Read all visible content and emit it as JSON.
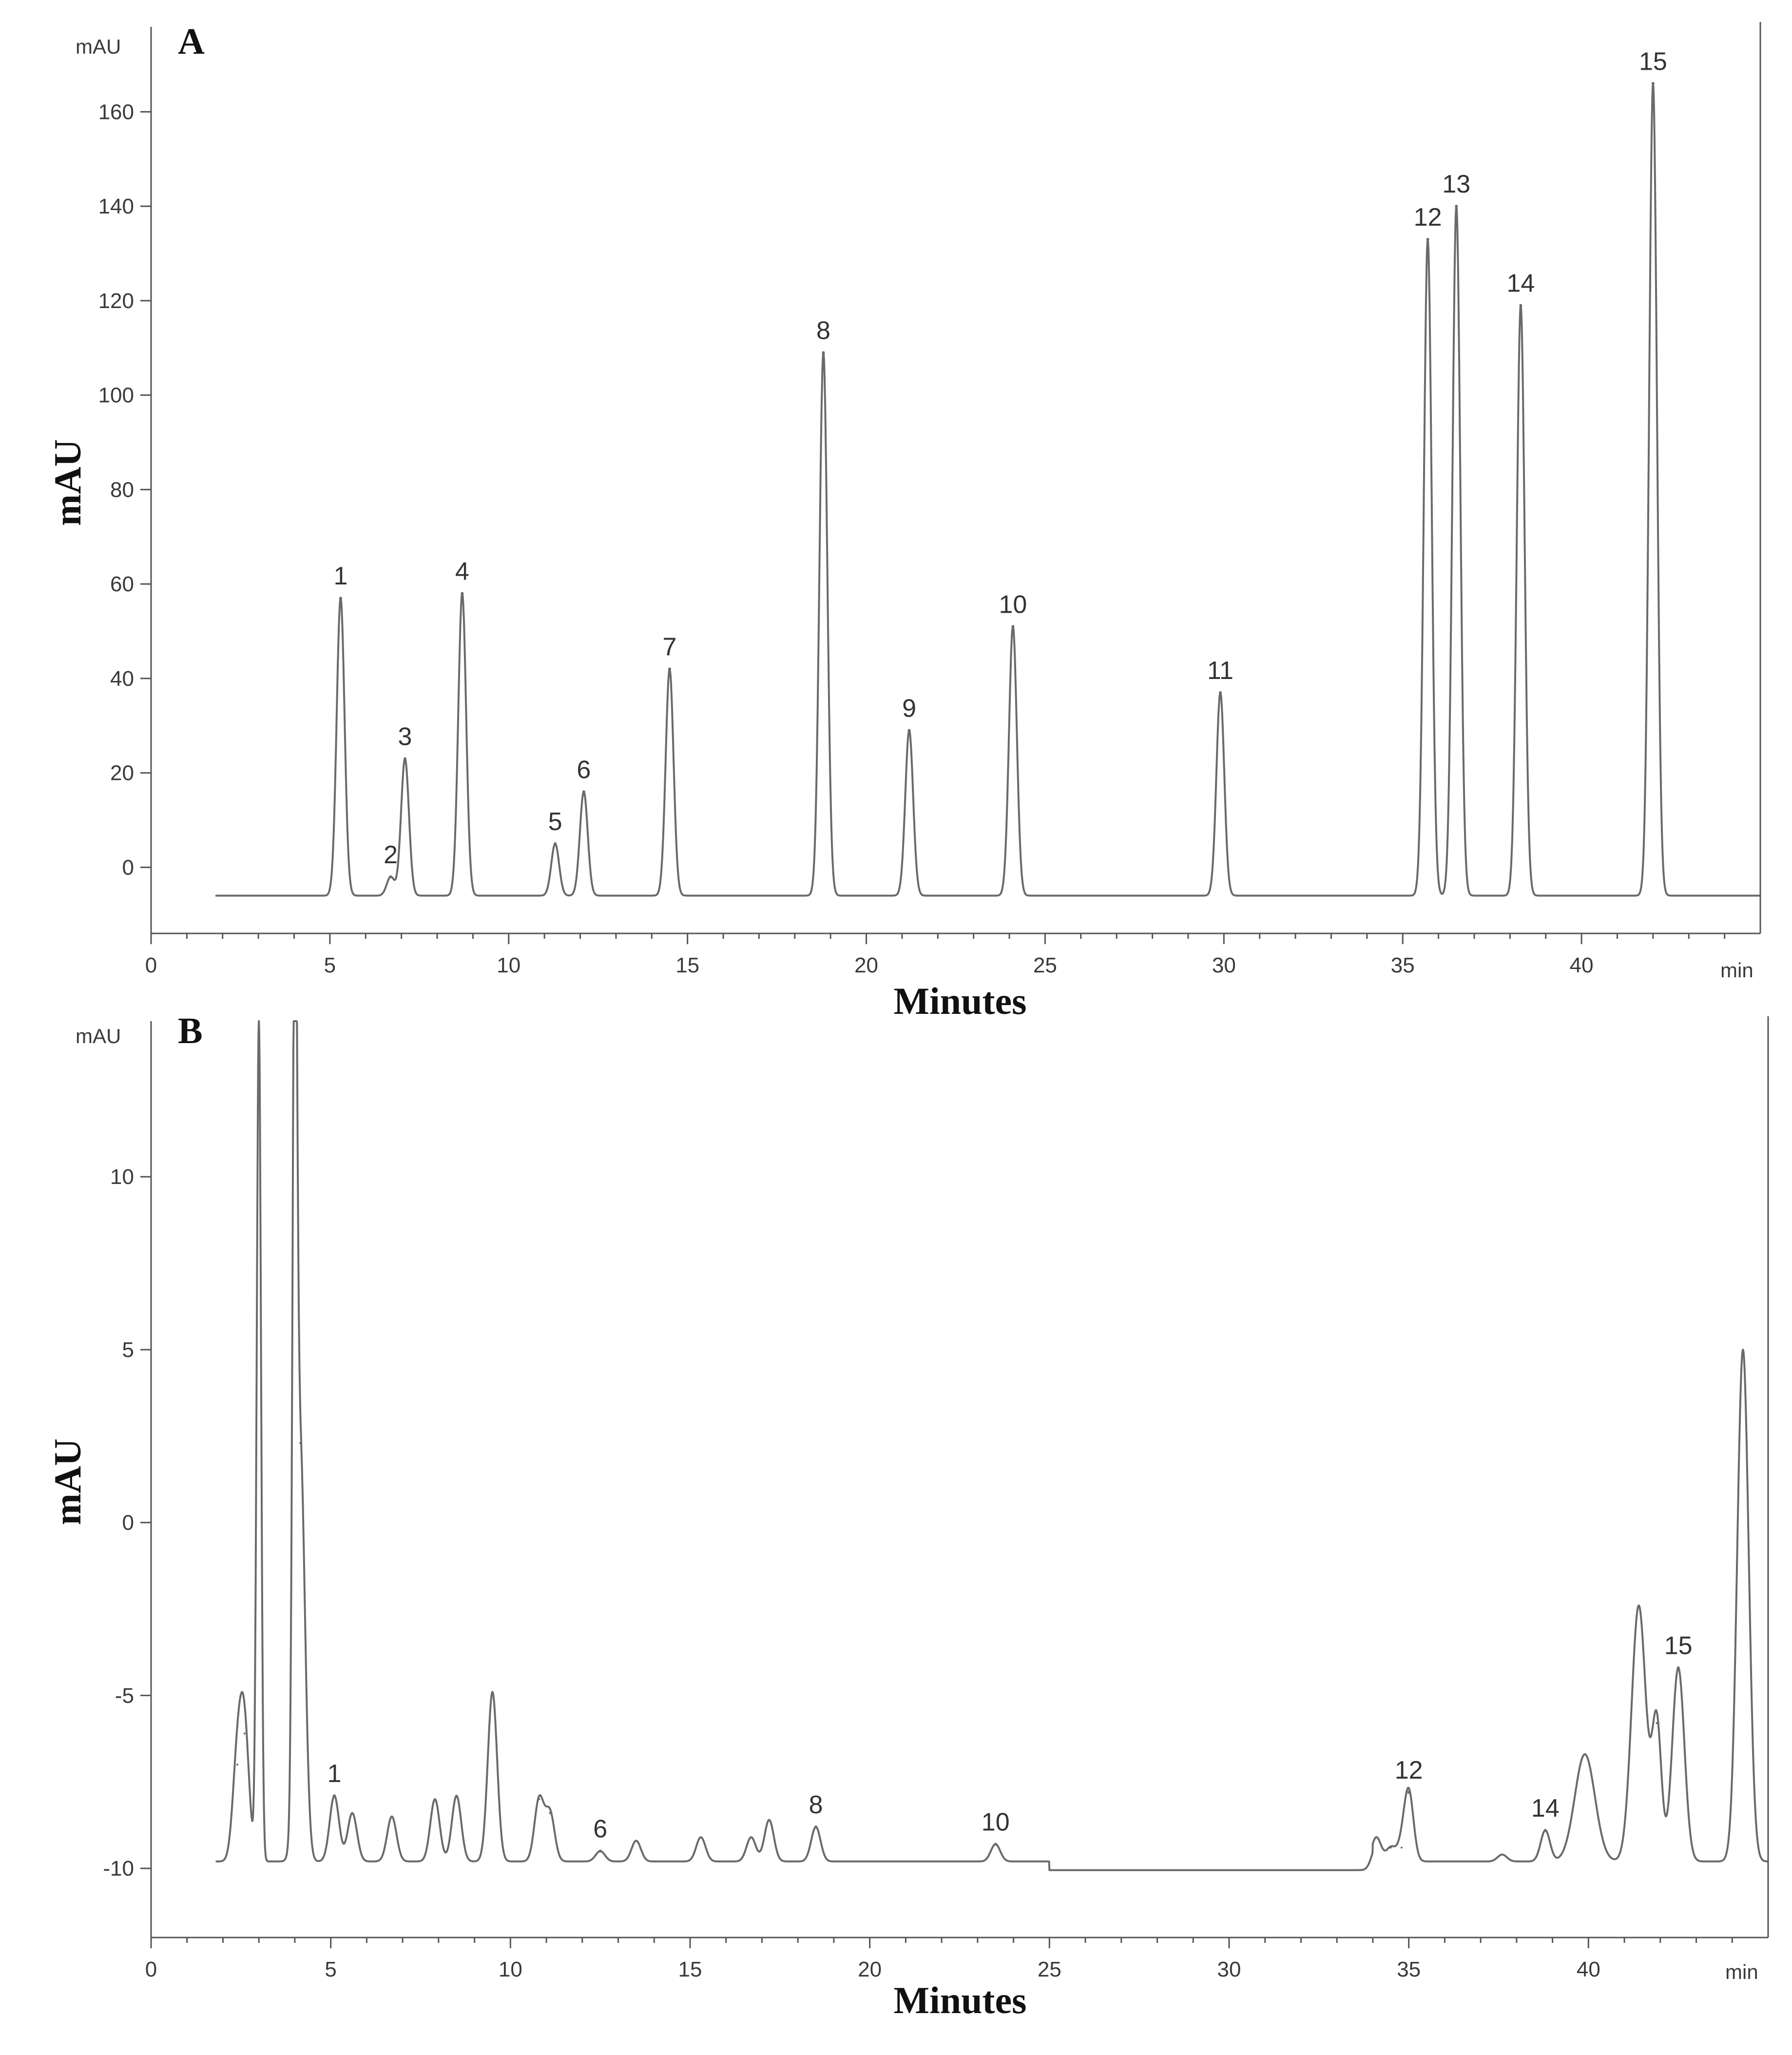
{
  "chart_data": [
    {
      "type": "line",
      "panel_label": "A",
      "unit_label": "mAU",
      "x_unit_label": "min",
      "xlabel": "Minutes",
      "ylabel": "mAU",
      "xlim": [
        0,
        45
      ],
      "ylim": [
        -14,
        178
      ],
      "x_ticks": [
        0,
        5,
        10,
        15,
        20,
        25,
        30,
        35,
        40
      ],
      "y_ticks": [
        0,
        20,
        40,
        60,
        80,
        100,
        120,
        140,
        160
      ],
      "baseline": -6,
      "peaks": [
        {
          "label": "1",
          "x": 5.3,
          "y": 57
        },
        {
          "label": "2",
          "x": 6.7,
          "y": -2
        },
        {
          "label": "3",
          "x": 7.1,
          "y": 23
        },
        {
          "label": "4",
          "x": 8.7,
          "y": 58
        },
        {
          "label": "5",
          "x": 11.3,
          "y": 5
        },
        {
          "label": "6",
          "x": 12.1,
          "y": 16
        },
        {
          "label": "7",
          "x": 14.5,
          "y": 42
        },
        {
          "label": "8",
          "x": 18.8,
          "y": 109
        },
        {
          "label": "9",
          "x": 21.2,
          "y": 29
        },
        {
          "label": "10",
          "x": 24.1,
          "y": 51
        },
        {
          "label": "11",
          "x": 29.9,
          "y": 37
        },
        {
          "label": "12",
          "x": 35.7,
          "y": 133
        },
        {
          "label": "13",
          "x": 36.5,
          "y": 140
        },
        {
          "label": "14",
          "x": 38.3,
          "y": 119
        },
        {
          "label": "15",
          "x": 42.0,
          "y": 166
        }
      ]
    },
    {
      "type": "line",
      "panel_label": "B",
      "unit_label": "mAU",
      "x_unit_label": "min",
      "xlabel": "Minutes",
      "ylabel": "mAU",
      "xlim": [
        0,
        45
      ],
      "ylim": [
        -12,
        14.5
      ],
      "x_ticks": [
        0,
        5,
        10,
        15,
        20,
        25,
        30,
        35,
        40
      ],
      "y_ticks": [
        -10,
        -5,
        0,
        5,
        10
      ],
      "baseline": -9.8,
      "peaks": [
        {
          "label": "1",
          "x": 5.1,
          "y": -7.9
        },
        {
          "label": "6",
          "x": 12.5,
          "y": -9.5
        },
        {
          "label": "8",
          "x": 18.5,
          "y": -8.8
        },
        {
          "label": "10",
          "x": 23.5,
          "y": -9.3
        },
        {
          "label": "12",
          "x": 35.0,
          "y": -7.8
        },
        {
          "label": "14",
          "x": 38.8,
          "y": -8.9
        },
        {
          "label": "15",
          "x": 42.5,
          "y": -4.2
        }
      ],
      "unlabeled_peaks": [
        {
          "x": 2.4,
          "y": -7.0
        },
        {
          "x": 2.6,
          "y": -6.1
        },
        {
          "x": 3.0,
          "y": 14.5
        },
        {
          "x": 4.0,
          "y": 14.5
        },
        {
          "x": 4.15,
          "y": 2.3
        },
        {
          "x": 5.6,
          "y": -8.4
        },
        {
          "x": 6.7,
          "y": -8.5
        },
        {
          "x": 7.9,
          "y": -8.0
        },
        {
          "x": 8.5,
          "y": -7.9
        },
        {
          "x": 9.5,
          "y": -4.9
        },
        {
          "x": 10.8,
          "y": -8.0
        },
        {
          "x": 11.1,
          "y": -8.4
        },
        {
          "x": 13.5,
          "y": -9.2
        },
        {
          "x": 15.3,
          "y": -9.1
        },
        {
          "x": 16.7,
          "y": -9.1
        },
        {
          "x": 17.2,
          "y": -8.6
        },
        {
          "x": 34.1,
          "y": -9.1
        },
        {
          "x": 34.5,
          "y": -9.4
        },
        {
          "x": 34.8,
          "y": -9.4
        },
        {
          "x": 37.6,
          "y": -9.6
        },
        {
          "x": 39.9,
          "y": -6.7
        },
        {
          "x": 41.4,
          "y": -2.4
        },
        {
          "x": 41.9,
          "y": -5.8
        },
        {
          "x": 44.3,
          "y": 5.0
        }
      ]
    }
  ]
}
